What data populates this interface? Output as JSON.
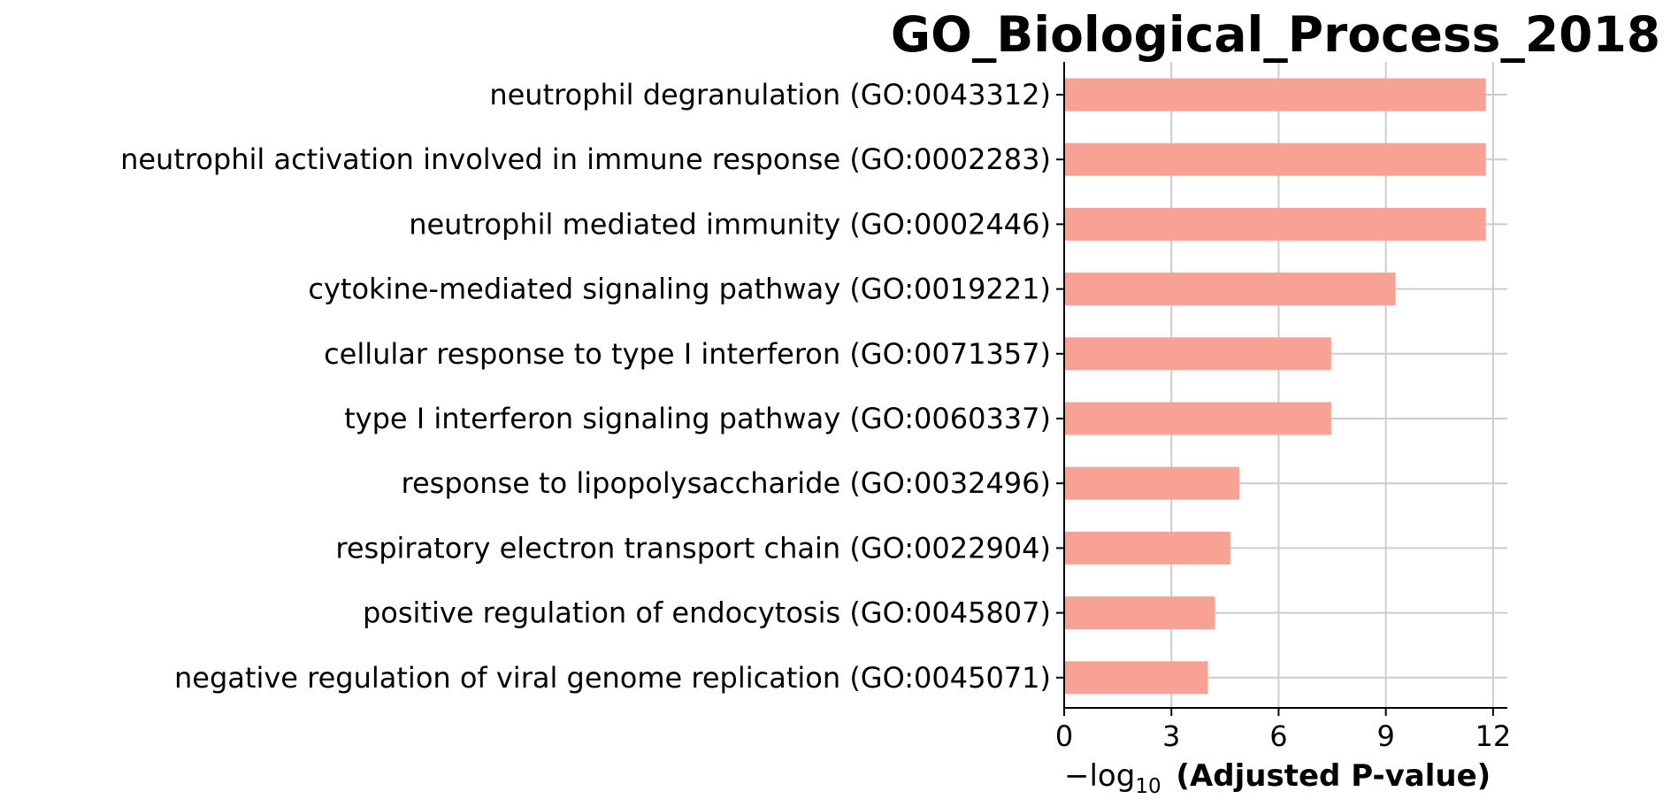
{
  "chart_data": {
    "type": "bar",
    "orientation": "horizontal",
    "title": "GO_Biological_Process_2018",
    "xlabel": {
      "prefix": "−log",
      "subscript": "10",
      "bold_part": "(Adjusted P-value)"
    },
    "ylabel": "",
    "categories": [
      "neutrophil degranulation (GO:0043312)",
      "neutrophil activation involved in immune response (GO:0002283)",
      "neutrophil mediated immunity (GO:0002446)",
      "cytokine-mediated signaling pathway (GO:0019221)",
      "cellular response to type I interferon (GO:0071357)",
      "type I interferon signaling pathway (GO:0060337)",
      "response to lipopolysaccharide (GO:0032496)",
      "respiratory electron transport chain (GO:0022904)",
      "positive regulation of endocytosis (GO:0045807)",
      "negative regulation of viral genome replication (GO:0045071)"
    ],
    "values": [
      11.8,
      11.8,
      11.8,
      9.27,
      7.47,
      7.47,
      4.9,
      4.65,
      4.22,
      4.02
    ],
    "xlim": [
      0,
      12.4
    ],
    "xticks": [
      "0",
      "3",
      "6",
      "9",
      "12"
    ],
    "xtick_values": [
      0,
      3,
      6,
      9,
      12
    ],
    "grid": true,
    "legend": "none",
    "colors": {
      "bar": "#f8a195",
      "grid": "#cccccc",
      "axis": "#000000",
      "text": "#000000"
    }
  }
}
